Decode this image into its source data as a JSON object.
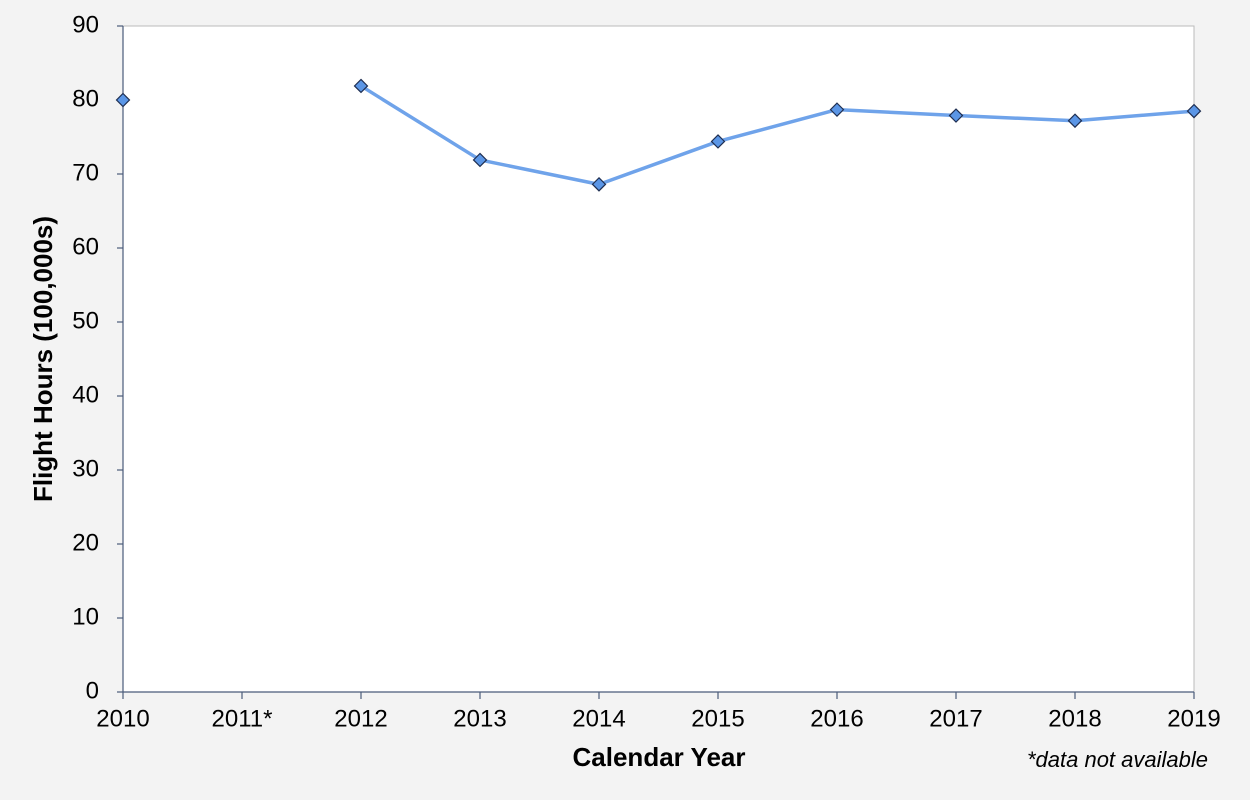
{
  "chart_data": {
    "type": "line",
    "x_label": "Calendar Year",
    "y_label": "Flight Hours (100,000s)",
    "annotation": "*data not available",
    "categories": [
      "2010",
      "2011*",
      "2012",
      "2013",
      "2014",
      "2015",
      "2016",
      "2017",
      "2018",
      "2019"
    ],
    "series": [
      {
        "color": "#6fa3ea",
        "marker_color": "#5b96e6",
        "values": [
          80,
          null,
          81.9,
          71.9,
          68.6,
          74.4,
          78.7,
          77.9,
          77.2,
          78.5
        ]
      }
    ],
    "ylim": [
      0,
      90
    ],
    "yticks": [
      0,
      10,
      20,
      30,
      40,
      50,
      60,
      70,
      80,
      90
    ]
  }
}
